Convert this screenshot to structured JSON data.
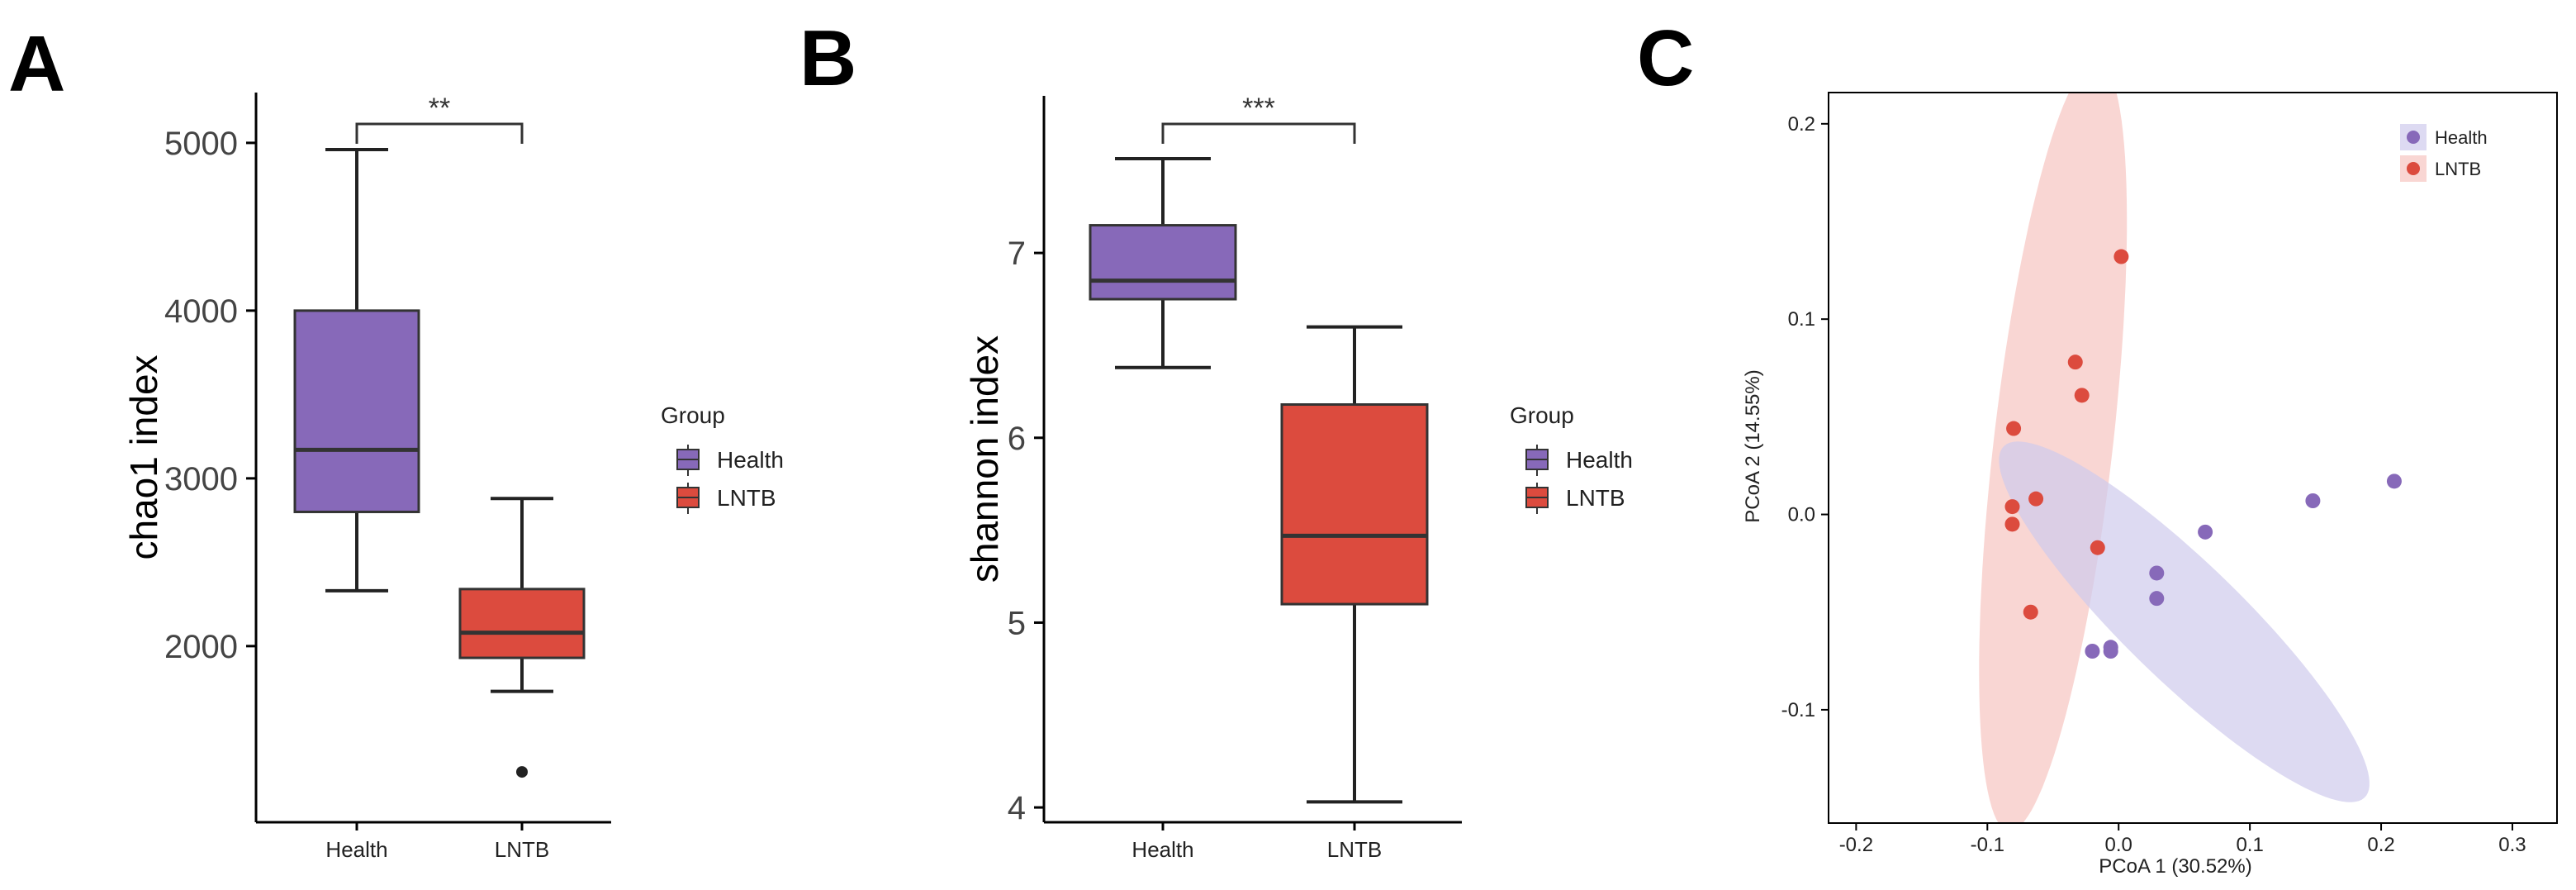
{
  "panels": {
    "a": "A",
    "b": "B",
    "c": "C"
  },
  "colors": {
    "health": "#8769b9",
    "lntb": "#dc4b3e",
    "health_ellipse": "#cfcbec",
    "lntb_ellipse": "#f6c4c0"
  },
  "chart_data": [
    {
      "type": "box",
      "panel": "A",
      "ylabel": "chao1 index",
      "yticks": [
        2000,
        3000,
        4000,
        5000
      ],
      "ylim": [
        950,
        5300
      ],
      "categories": [
        "Health",
        "LNTB"
      ],
      "boxes": [
        {
          "group": "Health",
          "min": 2330,
          "q1": 2800,
          "median": 3170,
          "q3": 4000,
          "max": 4960,
          "outliers": []
        },
        {
          "group": "LNTB",
          "min": 1730,
          "q1": 1930,
          "median": 2080,
          "q3": 2340,
          "max": 2880,
          "outliers": [
            1250
          ]
        }
      ],
      "significance": "**",
      "legend": {
        "title": "Group",
        "items": [
          "Health",
          "LNTB"
        ]
      }
    },
    {
      "type": "box",
      "panel": "B",
      "ylabel": "shannon index",
      "yticks": [
        4,
        5,
        6,
        7
      ],
      "ylim": [
        3.92,
        7.85
      ],
      "categories": [
        "Health",
        "LNTB"
      ],
      "boxes": [
        {
          "group": "Health",
          "min": 6.38,
          "q1": 6.75,
          "median": 6.85,
          "q3": 7.15,
          "max": 7.51,
          "outliers": []
        },
        {
          "group": "LNTB",
          "min": 4.03,
          "q1": 5.1,
          "median": 5.47,
          "q3": 6.18,
          "max": 6.6,
          "outliers": []
        }
      ],
      "significance": "***",
      "legend": {
        "title": "Group",
        "items": [
          "Health",
          "LNTB"
        ]
      }
    },
    {
      "type": "scatter",
      "panel": "C",
      "xlabel": "PCoA 1 (30.52%)",
      "ylabel": "PCoA 2 (14.55%)",
      "xticks": [
        -0.2,
        -0.1,
        0.0,
        0.1,
        0.2,
        0.3
      ],
      "xtick_labels": [
        "-0.2",
        "-0.1",
        "0.0",
        "0.1",
        "0.2",
        "0.3"
      ],
      "yticks": [
        -0.1,
        0.0,
        0.1,
        0.2
      ],
      "ytick_labels": [
        "-0.1",
        "0.0",
        "0.1",
        "0.2"
      ],
      "xlim": [
        -0.221,
        0.334
      ],
      "ylim": [
        -0.158,
        0.216
      ],
      "series": [
        {
          "name": "Health",
          "points": [
            [
              0.21,
              0.017
            ],
            [
              0.148,
              0.007
            ],
            [
              0.066,
              -0.009
            ],
            [
              0.029,
              -0.03
            ],
            [
              0.029,
              -0.043
            ],
            [
              -0.006,
              -0.068
            ],
            [
              -0.006,
              -0.07
            ],
            [
              -0.02,
              -0.07
            ]
          ],
          "ellipse": {
            "center": [
              0.05,
              -0.055
            ],
            "semi_axes": [
              0.165,
              0.035
            ],
            "angle_deg": -32
          }
        },
        {
          "name": "LNTB",
          "points": [
            [
              0.002,
              0.132
            ],
            [
              -0.033,
              0.078
            ],
            [
              -0.028,
              0.061
            ],
            [
              -0.08,
              0.044
            ],
            [
              -0.063,
              0.008
            ],
            [
              -0.081,
              0.004
            ],
            [
              -0.081,
              -0.005
            ],
            [
              -0.016,
              -0.017
            ],
            [
              -0.067,
              -0.05
            ]
          ],
          "ellipse": {
            "center": [
              -0.05,
              0.035
            ],
            "semi_axes": [
              0.2,
              0.045
            ],
            "angle_deg": 80
          }
        }
      ],
      "legend": {
        "items": [
          "Health",
          "LNTB"
        ],
        "position": "top-right"
      }
    }
  ]
}
